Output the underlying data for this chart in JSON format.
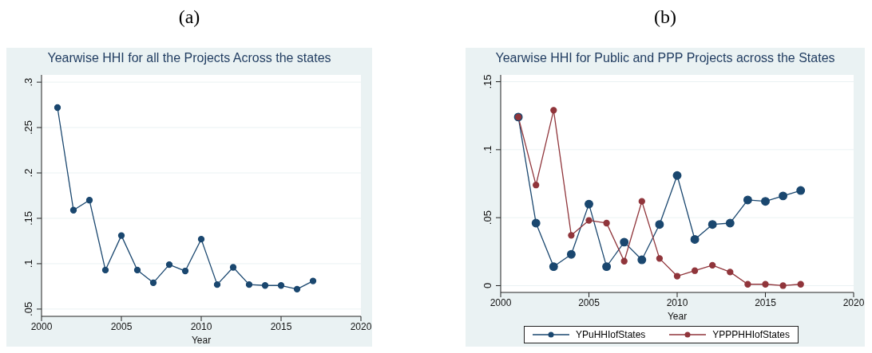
{
  "chart_data": [
    {
      "type": "line",
      "title": "Yearwise HHI for all the Projects Across the states",
      "annotations": [
        "(a)"
      ],
      "xlabel": "Year",
      "x": [
        2001,
        2002,
        2003,
        2004,
        2005,
        2006,
        2007,
        2008,
        2009,
        2010,
        2011,
        2012,
        2013,
        2014,
        2015,
        2016,
        2017
      ],
      "xlim": [
        2000,
        2020
      ],
      "xticks": [
        2000,
        2005,
        2010,
        2015,
        2020
      ],
      "ylim": [
        0.042,
        0.308
      ],
      "yticks": [
        {
          "value": 0.05,
          "label": ".05"
        },
        {
          "value": 0.1,
          "label": ".1"
        },
        {
          "value": 0.15,
          "label": ".15"
        },
        {
          "value": 0.2,
          "label": ".2"
        },
        {
          "value": 0.25,
          "label": ".25"
        },
        {
          "value": 0.3,
          "label": ".3"
        }
      ],
      "grid": "y",
      "marker": "circle",
      "series": [
        {
          "color": "#1a476f",
          "values": [
            0.272,
            0.159,
            0.17,
            0.093,
            0.131,
            0.093,
            0.079,
            0.099,
            0.092,
            0.127,
            0.077,
            0.096,
            0.077,
            0.076,
            0.076,
            0.072,
            0.081
          ]
        }
      ]
    },
    {
      "type": "line",
      "title": "Yearwise HHI for Public and PPP Projects across the States",
      "annotations": [
        "(b)"
      ],
      "xlabel": "Year",
      "x": [
        2001,
        2002,
        2003,
        2004,
        2005,
        2006,
        2007,
        2008,
        2009,
        2010,
        2011,
        2012,
        2013,
        2014,
        2015,
        2016,
        2017
      ],
      "xlim": [
        2000,
        2020
      ],
      "xticks": [
        2000,
        2005,
        2010,
        2015,
        2020
      ],
      "ylim": [
        -0.005,
        0.155
      ],
      "yticks": [
        {
          "value": 0,
          "label": "0"
        },
        {
          "value": 0.05,
          "label": ".05"
        },
        {
          "value": 0.1,
          "label": ".1"
        },
        {
          "value": 0.15,
          "label": ".15"
        }
      ],
      "grid": "y",
      "marker": "circle",
      "legend": "bottom",
      "series": [
        {
          "name": "YPuHHIofStates",
          "color": "#1a476f",
          "values": [
            0.124,
            0.046,
            0.014,
            0.023,
            0.06,
            0.014,
            0.032,
            0.019,
            0.045,
            0.081,
            0.034,
            0.045,
            0.046,
            0.063,
            0.062,
            0.066,
            0.07
          ]
        },
        {
          "name": "YPPPHHIofStates",
          "color": "#90353b",
          "values": [
            0.124,
            0.074,
            0.129,
            0.037,
            0.048,
            0.046,
            0.018,
            0.062,
            0.02,
            0.007,
            0.011,
            0.015,
            0.01,
            0.001,
            0.001,
            0.0,
            0.001
          ]
        }
      ]
    }
  ]
}
